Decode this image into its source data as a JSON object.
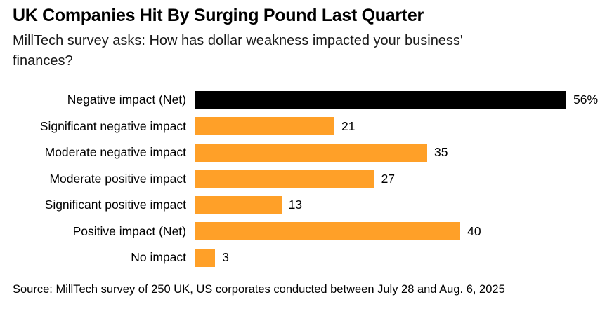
{
  "header": {
    "title": "UK Companies Hit By Surging Pound Last Quarter",
    "subtitle": "MillTech survey asks: How has dollar weakness impacted your business' finances?"
  },
  "footer": {
    "source": "Source: MillTech survey of 250 UK, US corporates conducted between July 28 and Aug. 6, 2025"
  },
  "chart_data": {
    "type": "bar",
    "orientation": "horizontal",
    "title": "UK Companies Hit By Surging Pound Last Quarter",
    "subtitle": "MillTech survey asks: How has dollar weakness impacted your business' finances?",
    "source": "Source: MillTech survey of 250 UK, US corporates conducted between July 28 and Aug. 6, 2025",
    "categories": [
      "Negative impact (Net)",
      "Significant negative impact",
      "Moderate negative impact",
      "Moderate positive impact",
      "Significant positive impact",
      "Positive impact (Net)",
      "No impact"
    ],
    "values": [
      56,
      21,
      35,
      27,
      13,
      40,
      3
    ],
    "value_labels": [
      "56%",
      "21",
      "35",
      "27",
      "13",
      "40",
      "3"
    ],
    "bar_colors": [
      "#000000",
      "#FFA028",
      "#FFA028",
      "#FFA028",
      "#FFA028",
      "#FFA028",
      "#FFA028"
    ],
    "accent_color": "#FFA028",
    "net_bar_color": "#000000",
    "xlim": [
      0,
      56
    ],
    "grid": false,
    "legend": false,
    "value_label_position": "outside-end",
    "category_label_alignment": "right"
  }
}
